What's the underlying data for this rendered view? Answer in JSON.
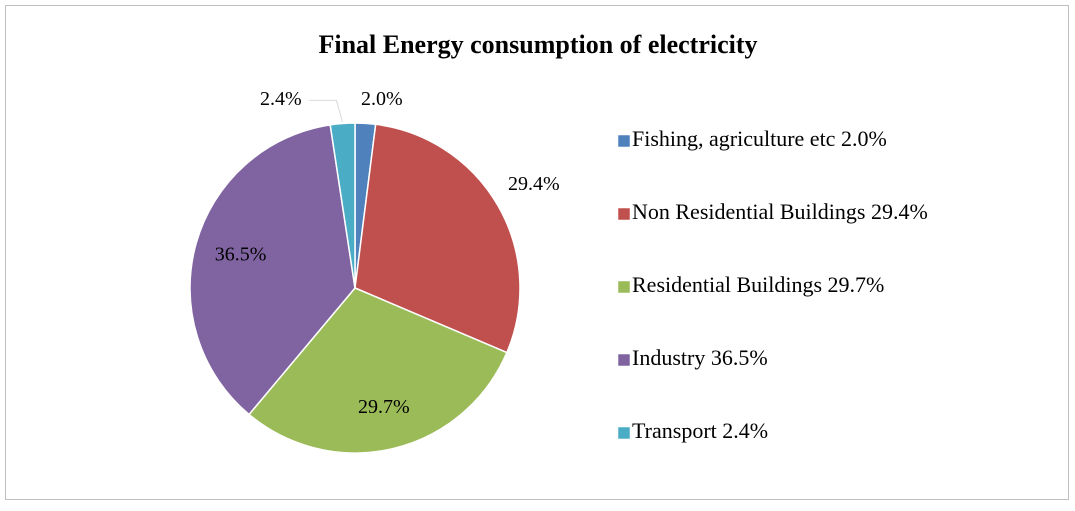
{
  "chart_data": {
    "type": "pie",
    "title": "Final Energy consumption of electricity",
    "categories": [
      "Fishing, agriculture etc 2.0%",
      "Non Residential Buildings 29.4%",
      "Residential Buildings 29.7%",
      "Industry 36.5%",
      "Transport 2.4%"
    ],
    "values": [
      2.0,
      29.4,
      29.7,
      36.5,
      2.4
    ],
    "value_labels": [
      "2.0%",
      "29.4%",
      "29.7%",
      "36.5%",
      "2.4%"
    ],
    "colors": [
      "#4f81bd",
      "#c0504d",
      "#9bbb59",
      "#8064a2",
      "#4bacc6"
    ],
    "legend": "right"
  }
}
